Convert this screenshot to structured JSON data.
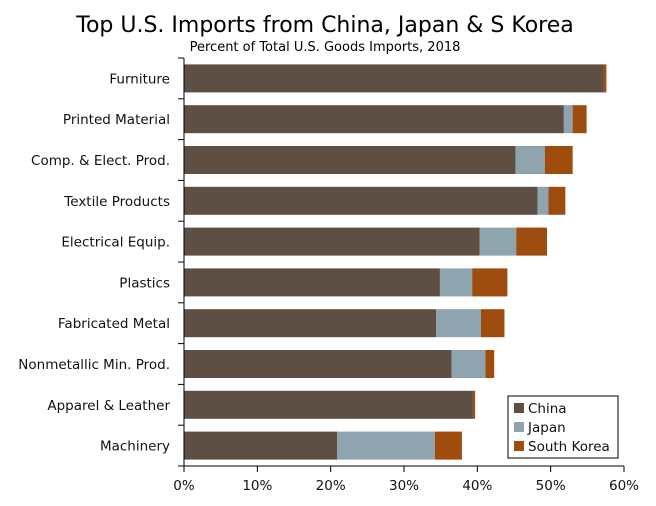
{
  "chart_data": {
    "type": "bar",
    "orientation": "horizontal",
    "stacked": true,
    "title": "Top U.S. Imports from China, Japan & S Korea",
    "subtitle": "Percent of Total U.S. Goods Imports, 2018",
    "xlabel": "",
    "ylabel": "",
    "xlim": [
      0,
      60
    ],
    "xticks": [
      "0%",
      "10%",
      "20%",
      "30%",
      "40%",
      "50%",
      "60%"
    ],
    "grid": false,
    "legend_position": "bottom-right",
    "categories": [
      "Furniture",
      "Printed Material",
      "Comp. & Elect. Prod.",
      "Textile Products",
      "Electrical Equip.",
      "Plastics",
      "Fabricated Metal",
      "Nonmetallic Min. Prod.",
      "Apparel & Leather",
      "Machinery"
    ],
    "series": [
      {
        "name": "China",
        "color": "#5d4f44",
        "values": [
          57.2,
          51.8,
          45.2,
          48.2,
          40.3,
          34.9,
          34.4,
          36.5,
          39.4,
          20.9
        ]
      },
      {
        "name": "Japan",
        "color": "#8ea4af",
        "values": [
          0.0,
          1.2,
          4.0,
          1.5,
          5.0,
          4.4,
          6.1,
          4.6,
          0.0,
          13.3
        ]
      },
      {
        "name": "South Korea",
        "color": "#9e4d0e",
        "values": [
          0.4,
          1.9,
          3.8,
          2.3,
          4.2,
          4.8,
          3.2,
          1.2,
          0.3,
          3.7
        ]
      }
    ]
  }
}
